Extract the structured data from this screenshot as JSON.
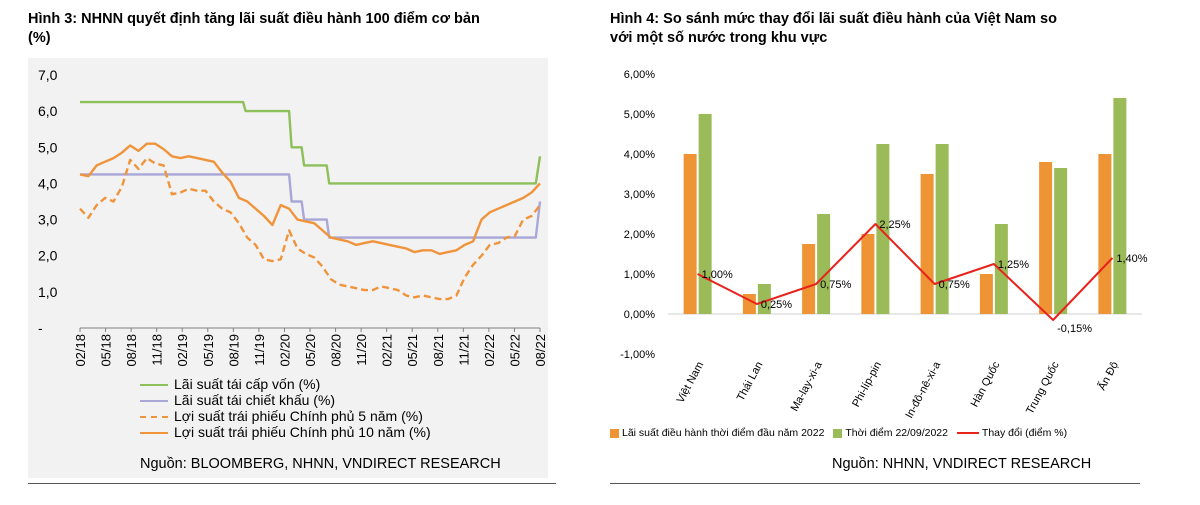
{
  "left_title_line1": "Hình 3: NHNN quyết định tăng lãi suất điều hành 100 điểm cơ bản",
  "left_title_line2": "(%)",
  "right_title_line1": "Hình 4: So sánh mức thay đổi lãi suất điều hành của Việt Nam so",
  "right_title_line2": "với một số nước trong khu vực",
  "left_source": "Nguồn: BLOOMBERG, NHNN, VNDIRECT RESEARCH",
  "right_source": "Nguồn: NHNN, VNDIRECT RESEARCH",
  "colors": {
    "green": "#8dbf5a",
    "lavender": "#a9a6d8",
    "orange": "#f0943b",
    "bar_orange": "#ef9434",
    "bar_green": "#9bbb59",
    "red_line": "#e8231b"
  },
  "chart_data": [
    {
      "type": "line",
      "title": "Hình 3: NHNN quyết định tăng lãi suất điều hành 100 điểm cơ bản (%)",
      "y_tick_labels": [
        "-",
        "1,0",
        "2,0",
        "3,0",
        "4,0",
        "5,0",
        "6,0",
        "7,0"
      ],
      "ylim": [
        0,
        7
      ],
      "x_tick_labels": [
        "02/18",
        "05/18",
        "08/18",
        "11/18",
        "02/19",
        "05/19",
        "08/19",
        "11/19",
        "02/20",
        "05/20",
        "08/20",
        "11/20",
        "02/21",
        "05/21",
        "08/21",
        "11/21",
        "02/22",
        "05/22",
        "08/22"
      ],
      "xlim": [
        0,
        55
      ],
      "series": [
        {
          "name": "Lãi suất tái cấp vốn (%)",
          "style": "solid",
          "color": "#8dbf5a",
          "points": [
            [
              0,
              6.25
            ],
            [
              19.5,
              6.25
            ],
            [
              19.8,
              6.0
            ],
            [
              25,
              6.0
            ],
            [
              25.3,
              5.0
            ],
            [
              26.5,
              5.0
            ],
            [
              26.8,
              4.5
            ],
            [
              29.5,
              4.5
            ],
            [
              29.8,
              4.0
            ],
            [
              54.5,
              4.0
            ],
            [
              55,
              4.75
            ]
          ]
        },
        {
          "name": "Lãi suất tái chiết khấu (%)",
          "style": "solid",
          "color": "#a9a6d8",
          "points": [
            [
              0,
              4.25
            ],
            [
              25,
              4.25
            ],
            [
              25.3,
              3.5
            ],
            [
              26.5,
              3.5
            ],
            [
              26.8,
              3.0
            ],
            [
              29.5,
              3.0
            ],
            [
              29.8,
              2.5
            ],
            [
              54.5,
              2.5
            ],
            [
              55,
              3.5
            ]
          ]
        },
        {
          "name": "Lợi suất trái phiếu Chính phủ 5 năm (%)",
          "style": "dashed",
          "color": "#f0943b",
          "points": [
            [
              0,
              3.3
            ],
            [
              1,
              3.05
            ],
            [
              2,
              3.4
            ],
            [
              3,
              3.6
            ],
            [
              4,
              3.5
            ],
            [
              5,
              3.9
            ],
            [
              6,
              4.65
            ],
            [
              7,
              4.4
            ],
            [
              8,
              4.7
            ],
            [
              9,
              4.55
            ],
            [
              10,
              4.5
            ],
            [
              11,
              3.7
            ],
            [
              12,
              3.75
            ],
            [
              13,
              3.85
            ],
            [
              14,
              3.8
            ],
            [
              15,
              3.8
            ],
            [
              16,
              3.5
            ],
            [
              17,
              3.3
            ],
            [
              18,
              3.2
            ],
            [
              19,
              2.9
            ],
            [
              20,
              2.5
            ],
            [
              21,
              2.3
            ],
            [
              22,
              1.9
            ],
            [
              23,
              1.85
            ],
            [
              24,
              1.9
            ],
            [
              25,
              2.7
            ],
            [
              26,
              2.2
            ],
            [
              27,
              2.05
            ],
            [
              28,
              1.95
            ],
            [
              29,
              1.7
            ],
            [
              30,
              1.35
            ],
            [
              31,
              1.2
            ],
            [
              32,
              1.15
            ],
            [
              33,
              1.1
            ],
            [
              34,
              1.05
            ],
            [
              35,
              1.05
            ],
            [
              36,
              1.15
            ],
            [
              37,
              1.1
            ],
            [
              38,
              1.05
            ],
            [
              39,
              0.9
            ],
            [
              40,
              0.85
            ],
            [
              41,
              0.9
            ],
            [
              42,
              0.85
            ],
            [
              43,
              0.8
            ],
            [
              44,
              0.8
            ],
            [
              45,
              0.9
            ],
            [
              46,
              1.4
            ],
            [
              47,
              1.75
            ],
            [
              48,
              2.0
            ],
            [
              49,
              2.3
            ],
            [
              50,
              2.35
            ],
            [
              51,
              2.5
            ],
            [
              52,
              2.55
            ],
            [
              53,
              3.0
            ],
            [
              54,
              3.1
            ],
            [
              55,
              3.4
            ]
          ]
        },
        {
          "name": "Lợi suất trái phiếu Chính phủ 10 năm (%)",
          "style": "solid",
          "color": "#f0943b",
          "points": [
            [
              0,
              4.25
            ],
            [
              1,
              4.2
            ],
            [
              2,
              4.5
            ],
            [
              3,
              4.6
            ],
            [
              4,
              4.7
            ],
            [
              5,
              4.85
            ],
            [
              6,
              5.05
            ],
            [
              7,
              4.9
            ],
            [
              8,
              5.1
            ],
            [
              9,
              5.1
            ],
            [
              10,
              4.95
            ],
            [
              11,
              4.75
            ],
            [
              12,
              4.7
            ],
            [
              13,
              4.75
            ],
            [
              14,
              4.7
            ],
            [
              15,
              4.65
            ],
            [
              16,
              4.6
            ],
            [
              17,
              4.3
            ],
            [
              18,
              4.05
            ],
            [
              19,
              3.6
            ],
            [
              20,
              3.5
            ],
            [
              21,
              3.3
            ],
            [
              22,
              3.1
            ],
            [
              23,
              2.85
            ],
            [
              24,
              3.4
            ],
            [
              25,
              3.3
            ],
            [
              26,
              3.0
            ],
            [
              27,
              2.95
            ],
            [
              28,
              2.9
            ],
            [
              29,
              2.7
            ],
            [
              30,
              2.5
            ],
            [
              31,
              2.45
            ],
            [
              32,
              2.4
            ],
            [
              33,
              2.3
            ],
            [
              34,
              2.35
            ],
            [
              35,
              2.4
            ],
            [
              36,
              2.35
            ],
            [
              37,
              2.3
            ],
            [
              38,
              2.25
            ],
            [
              39,
              2.2
            ],
            [
              40,
              2.1
            ],
            [
              41,
              2.15
            ],
            [
              42,
              2.15
            ],
            [
              43,
              2.05
            ],
            [
              44,
              2.1
            ],
            [
              45,
              2.15
            ],
            [
              46,
              2.3
            ],
            [
              47,
              2.4
            ],
            [
              48,
              3.0
            ],
            [
              49,
              3.2
            ],
            [
              50,
              3.3
            ],
            [
              51,
              3.4
            ],
            [
              52,
              3.5
            ],
            [
              53,
              3.6
            ],
            [
              54,
              3.75
            ],
            [
              55,
              4.0
            ]
          ]
        }
      ]
    },
    {
      "type": "bar",
      "title": "Hình 4: So sánh mức thay đổi lãi suất điều hành của Việt Nam so với một số nước trong khu vực",
      "categories": [
        "Việt Nam",
        "Thái Lan",
        "Ma-lay-xi-a",
        "Phi-líp-pin",
        "In-đô-nê-xi-a",
        "Hàn Quốc",
        "Trung Quốc",
        "Ấn Độ"
      ],
      "y_tick_labels": [
        "6,00%",
        "5,00%",
        "4,00%",
        "3,00%",
        "2,00%",
        "1,00%",
        "0,00%",
        "-1,00%"
      ],
      "ylim": [
        -1.0,
        6.0
      ],
      "series": [
        {
          "name": "Lãi suất điều hành thời điểm đầu năm 2022",
          "color": "#ef9434",
          "values": [
            4.0,
            0.5,
            1.75,
            2.0,
            3.5,
            1.0,
            3.8,
            4.0
          ]
        },
        {
          "name": "Thời điểm 22/09/2022",
          "color": "#9bbb59",
          "values": [
            5.0,
            0.75,
            2.5,
            4.25,
            4.25,
            2.25,
            3.65,
            5.4
          ]
        },
        {
          "name": "Thay đổi (điểm %)",
          "type": "line",
          "color": "#e8231b",
          "values": [
            1.0,
            0.25,
            0.75,
            2.25,
            0.75,
            1.25,
            -0.15,
            1.4
          ]
        }
      ],
      "data_labels": [
        "1,00%",
        "0,25%",
        "0,75%",
        "2,25%",
        "0,75%",
        "1,25%",
        "-0,15%",
        "1,40%"
      ]
    }
  ]
}
